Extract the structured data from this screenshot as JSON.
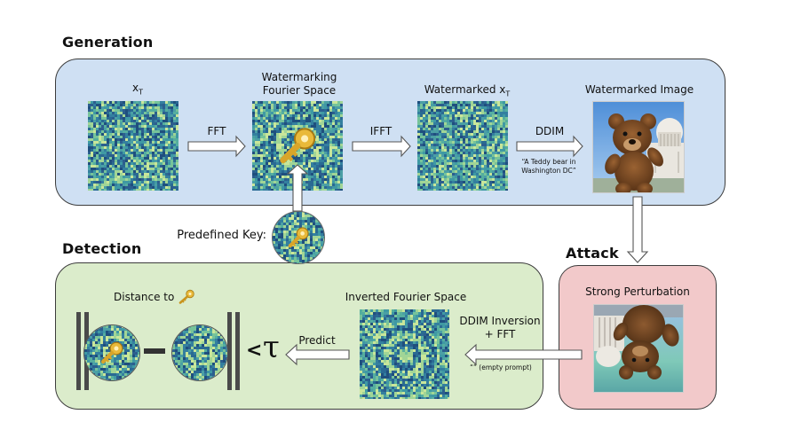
{
  "generation": {
    "title": "Generation",
    "xt_label": "x",
    "xt_sub": "T",
    "fft_label": "FFT",
    "wm_fourier_line1": "Watermarking",
    "wm_fourier_line2": "Fourier Space",
    "ifft_label": "IFFT",
    "wm_xt_label": "Watermarked x",
    "wm_xt_sub": "T",
    "ddim_label": "DDIM",
    "prompt_line1": "“A Teddy bear in",
    "prompt_line2": "Washington DC”",
    "wm_image_label": "Watermarked Image"
  },
  "key": {
    "label": "Predefined Key:"
  },
  "attack": {
    "title": "Attack",
    "label": "Strong Perturbation"
  },
  "detection": {
    "title": "Detection",
    "distance_label": "Distance to",
    "minus": "—",
    "less_than": "<",
    "tau": "τ",
    "predict_label": "Predict",
    "inverted_label": "Inverted Fourier Space",
    "ddim_inv_line1": "DDIM Inversion",
    "ddim_inv_line2": "+ FFT",
    "empty_prompt": "“” (empty prompt)"
  },
  "colors": {
    "generation_bg": "#cfe0f3",
    "detection_bg": "#dbeccb",
    "attack_bg": "#f2c9ca",
    "noise_dark": "#2a5d8c",
    "noise_mid": "#4fa7a0",
    "noise_light": "#b9dd9a",
    "key_gold": "#e9b93a"
  }
}
